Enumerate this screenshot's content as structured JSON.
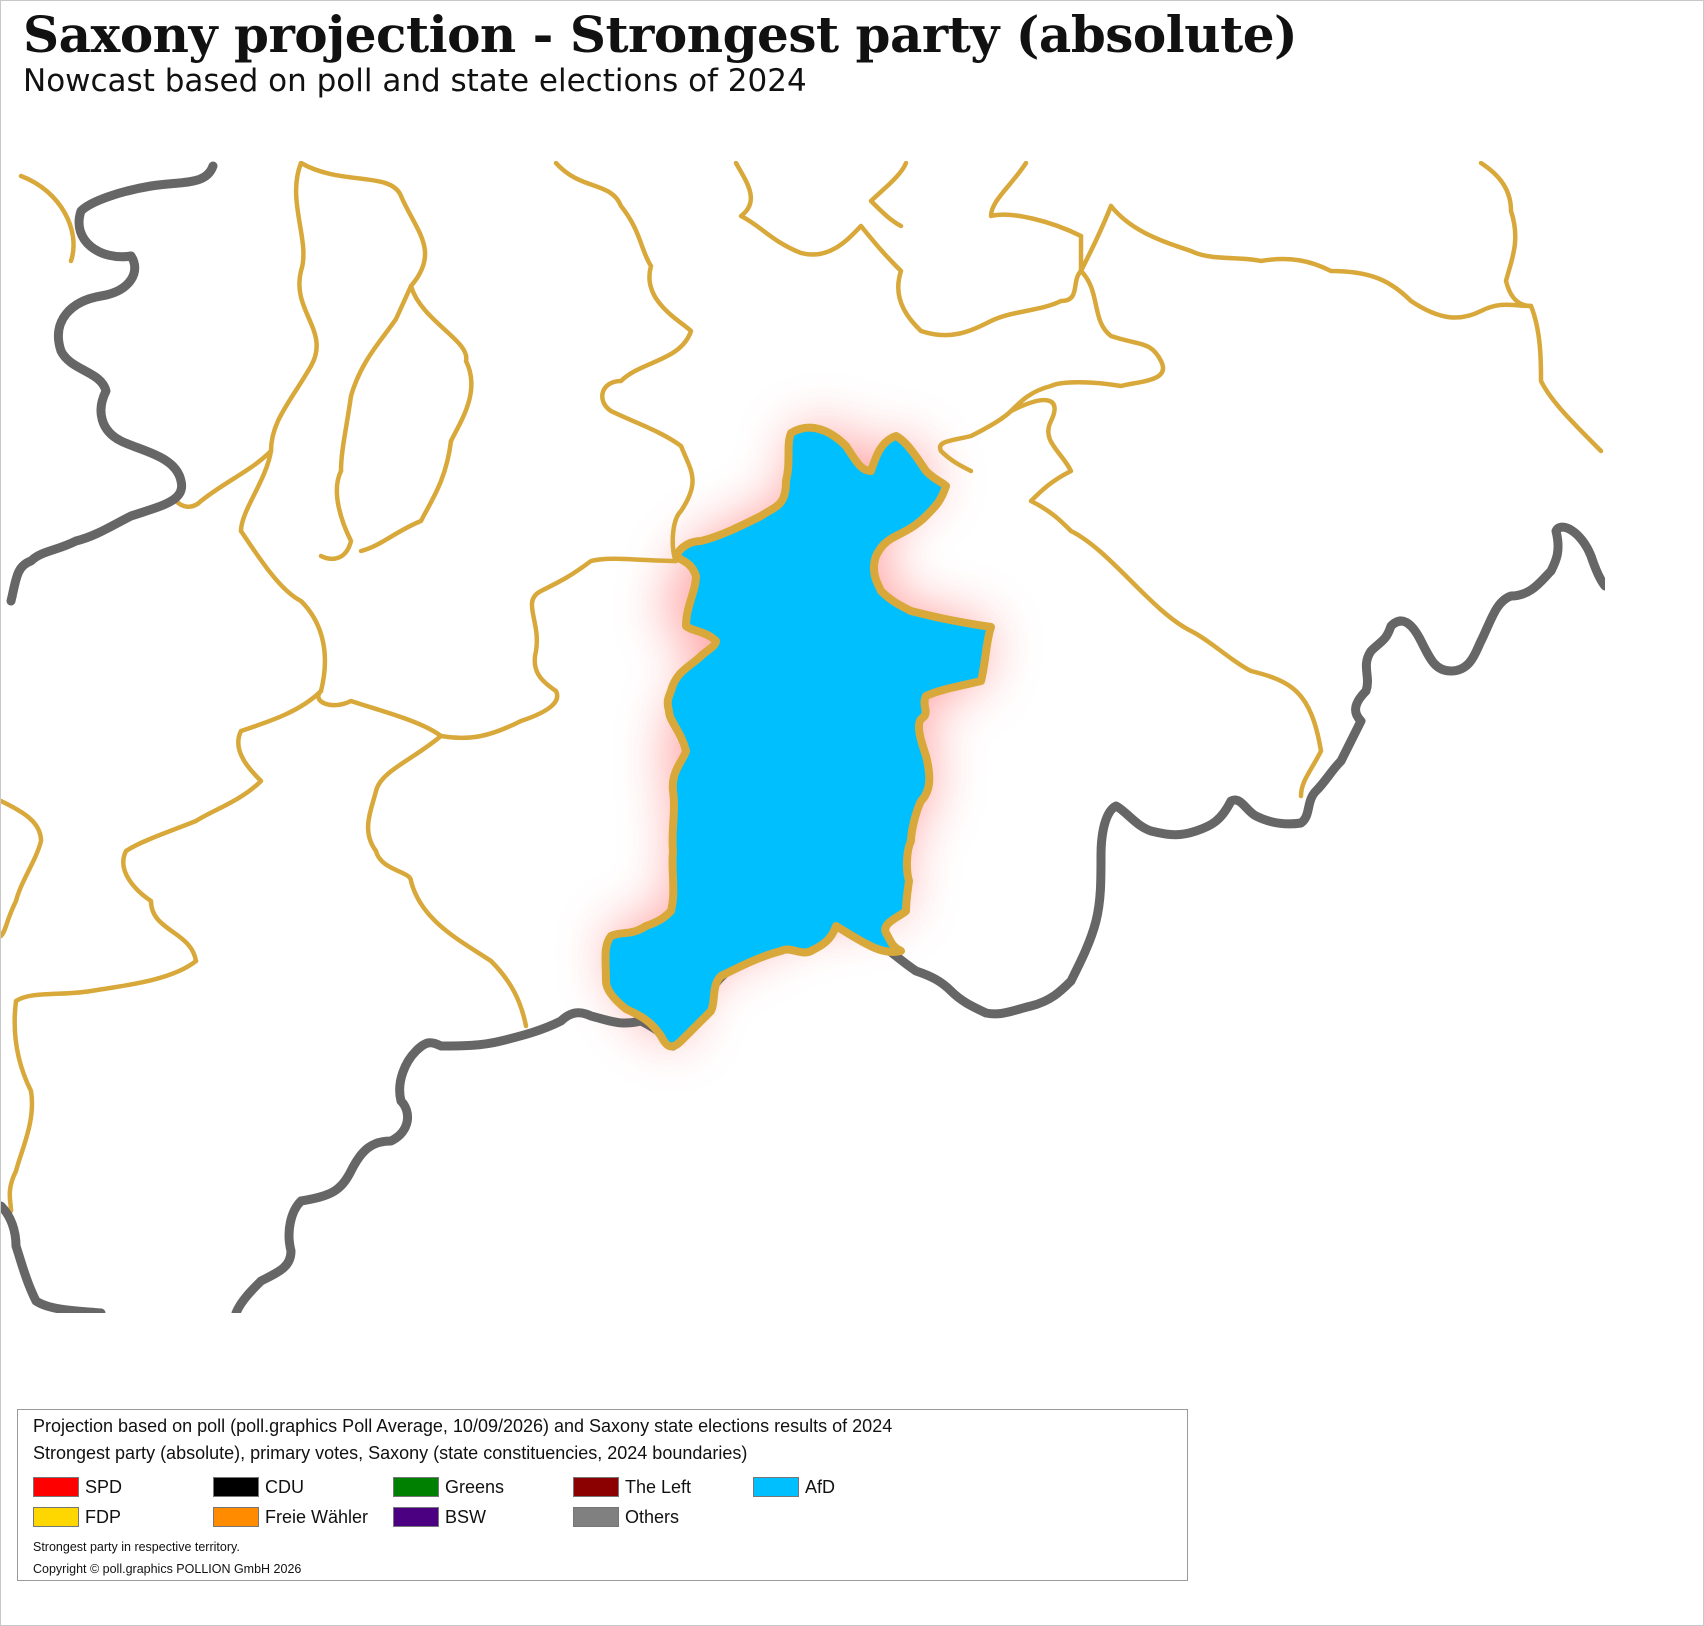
{
  "title": "Saxony projection - Strongest party (absolute)",
  "subtitle": "Nowcast based on poll and state elections of 2024",
  "map": {
    "colors": {
      "background": "#ffffff",
      "constituency_border": "#d8a93a",
      "state_border": "#666666",
      "highlight_fill": "#00bfff",
      "highlight_glow": "#ff5a5a"
    },
    "highlighted_constituency_party": "AfD"
  },
  "legend": {
    "line1": "Projection based on poll (poll.graphics Poll Average, 10/09/2026) and Saxony state elections results of 2024",
    "line2": "Strongest party (absolute), primary votes, Saxony (state constituencies, 2024 boundaries)",
    "items": [
      {
        "label": "SPD",
        "color": "#ff0000"
      },
      {
        "label": "CDU",
        "color": "#000000"
      },
      {
        "label": "Greens",
        "color": "#008000"
      },
      {
        "label": "The Left",
        "color": "#8b0000"
      },
      {
        "label": "AfD",
        "color": "#00bfff"
      },
      {
        "label": "FDP",
        "color": "#ffd700"
      },
      {
        "label": "Freie Wähler",
        "color": "#ff8c00"
      },
      {
        "label": "BSW",
        "color": "#4b0082"
      },
      {
        "label": "Others",
        "color": "#808080"
      }
    ],
    "note": "Strongest party in respective territory.",
    "copyright": "Copyright © poll.graphics POLLION GmbH 2026"
  }
}
